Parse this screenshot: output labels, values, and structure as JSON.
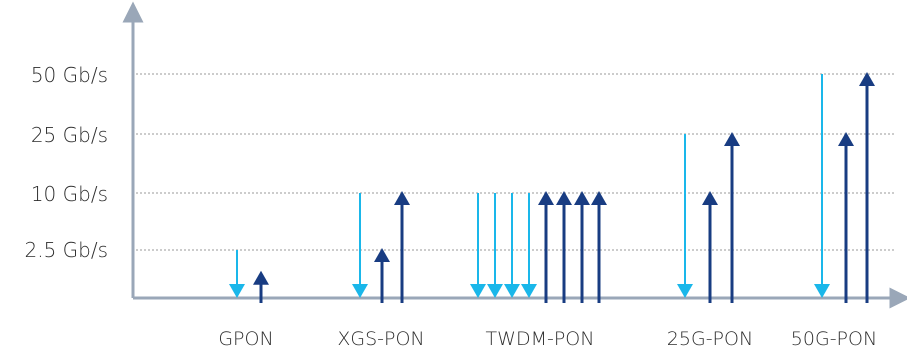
{
  "chart_data": {
    "type": "bar",
    "title": "",
    "xlabel": "",
    "ylabel": "",
    "y_ticks": [
      "50 Gb/s",
      "25 Gb/s",
      "10 Gb/s",
      "2.5 Gb/s"
    ],
    "y_tick_values": [
      50,
      25,
      10,
      2.5
    ],
    "y_scale": "ordinal",
    "grid": "horizontal-dotted",
    "categories": [
      "GPON",
      "XGS-PON",
      "TWDM-PON",
      "25G-PON",
      "50G-PON"
    ],
    "series": [
      {
        "direction": "down",
        "color": "#1ab7ea",
        "values": [
          [
            2.5
          ],
          [
            10
          ],
          [
            10,
            10,
            10,
            10
          ],
          [
            25
          ],
          [
            50
          ]
        ]
      },
      {
        "direction": "up",
        "color": "#183c82",
        "values": [
          [
            1.25
          ],
          [
            2.5,
            10
          ],
          [
            10,
            10,
            10,
            10
          ],
          [
            10,
            25
          ],
          [
            25,
            50
          ]
        ]
      }
    ],
    "colors": {
      "axis": "#9aa7b8",
      "grid": "#9a9a9a",
      "downstream": "#1ab7ea",
      "upstream": "#183c82"
    }
  }
}
